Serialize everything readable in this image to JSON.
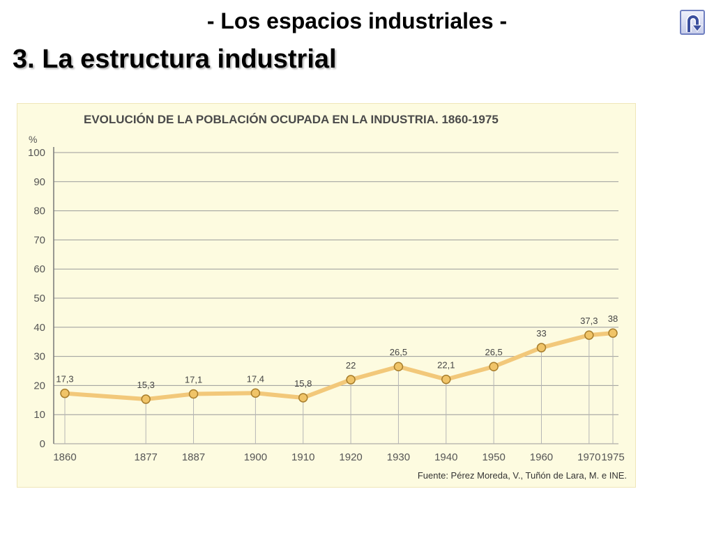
{
  "slide": {
    "subtitle": "- Los espacios industriales -",
    "title": "3. La estructura industrial"
  },
  "nav": {
    "back_icon": "u-turn-arrow-icon"
  },
  "colors": {
    "line": "#f2c87a",
    "marker_fill": "#f0c468",
    "marker_stroke": "#a87e2c",
    "grid": "#9a9a9a",
    "title_text": "#4a4a4a",
    "background": "#fdfbe0"
  },
  "chart_data": {
    "type": "line",
    "title": "EVOLUCIÓN DE LA POBLACIÓN OCUPADA EN LA INDUSTRIA. 1860-1975",
    "ylabel": "%",
    "xlabel": "",
    "ylim": [
      0,
      100
    ],
    "yticks": [
      0,
      10,
      20,
      30,
      40,
      50,
      60,
      70,
      80,
      90,
      100
    ],
    "grid": true,
    "x": [
      1860,
      1877,
      1887,
      1900,
      1910,
      1920,
      1930,
      1940,
      1950,
      1960,
      1970,
      1975
    ],
    "x_labels": [
      "1860",
      "1877",
      "1887",
      "1900",
      "1910",
      "1920",
      "1930",
      "1940",
      "1950",
      "1960",
      "1970",
      "1975"
    ],
    "values": [
      17.3,
      15.3,
      17.1,
      17.4,
      15.8,
      22,
      26.5,
      22.1,
      26.5,
      33,
      37.3,
      38
    ],
    "value_labels": [
      "17,3",
      "15,3",
      "17,1",
      "17,4",
      "15,8",
      "22",
      "26,5",
      "22,1",
      "26,5",
      "33",
      "37,3",
      "38"
    ],
    "source": "Fuente: Pérez Moreda, V., Tuñón de Lara, M. e INE."
  }
}
